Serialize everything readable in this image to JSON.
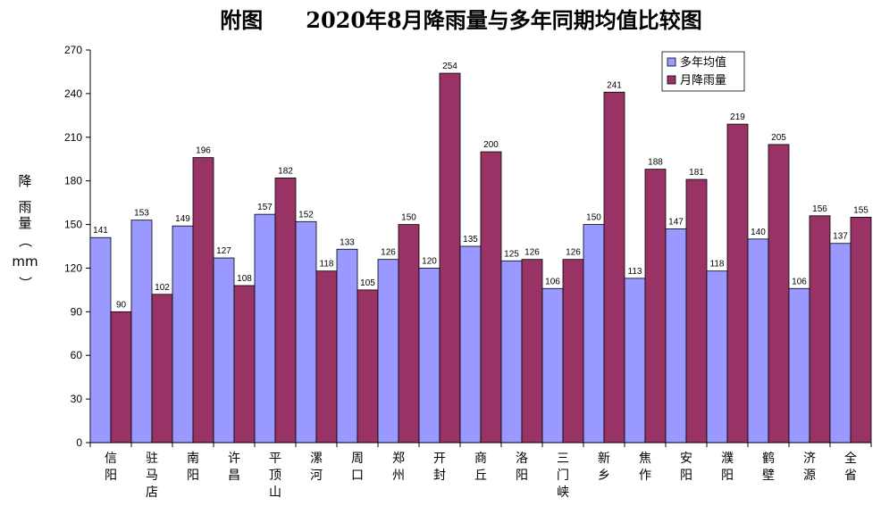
{
  "chart_data": {
    "type": "bar",
    "title": "附图 2020年8月降雨量与多年同期均值比较图",
    "ylabel_chars": [
      "降",
      "雨",
      "量",
      "（",
      "mm",
      "）"
    ],
    "ylim": [
      0,
      270
    ],
    "yticks": [
      "0",
      "30",
      "60",
      "90",
      "120",
      "150",
      "180",
      "210",
      "240",
      "270"
    ],
    "categories": [
      "信阳",
      "驻马店",
      "南阳",
      "许昌",
      "平顶山",
      "漯河",
      "周口",
      "郑州",
      "开封",
      "商丘",
      "洛阳",
      "三门峡",
      "新乡",
      "焦作",
      "安阳",
      "濮阳",
      "鹤壁",
      "济源",
      "全省"
    ],
    "series": [
      {
        "name": "多年均值",
        "color": "#9999ff",
        "values": [
          141,
          153,
          149,
          127,
          157,
          152,
          133,
          126,
          120,
          135,
          125,
          106,
          150,
          113,
          147,
          118,
          140,
          106,
          137
        ]
      },
      {
        "name": "月降雨量",
        "color": "#993366",
        "values": [
          90,
          102,
          196,
          108,
          182,
          118,
          105,
          150,
          254,
          200,
          126,
          126,
          241,
          188,
          181,
          219,
          205,
          156,
          155
        ]
      }
    ],
    "legend_position": "top-right",
    "grid": false
  }
}
